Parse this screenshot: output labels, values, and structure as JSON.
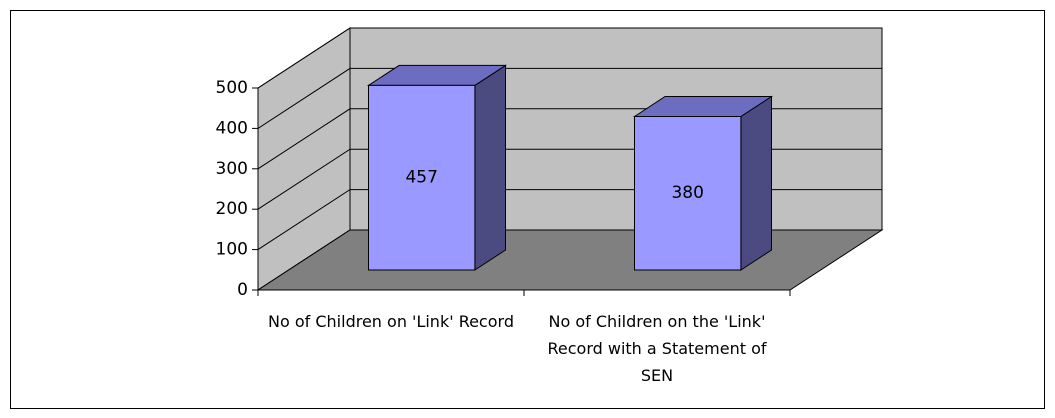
{
  "chart_data": {
    "type": "bar3d",
    "categories": [
      "No of Children on 'Link' Record",
      "No of Children on the 'Link' Record with a Statement of SEN"
    ],
    "values": [
      457,
      380
    ],
    "color": "#9999ff",
    "ylim": [
      0,
      500
    ],
    "yticks": [
      0,
      100,
      200,
      300,
      400,
      500
    ],
    "grid": true
  }
}
